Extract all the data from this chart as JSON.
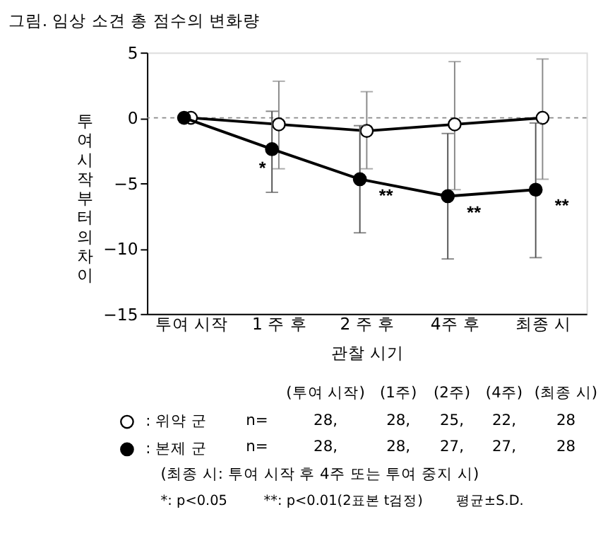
{
  "chart_data": {
    "type": "line",
    "title": "그림. 임상 소견 총 점수의 변화량",
    "xlabel": "관찰 시기",
    "ylabel": "투여시작부터의 차이",
    "categories": [
      "투여 시작",
      "1 주 후",
      "2 주 후",
      "4주 후",
      "최종 시"
    ],
    "series": [
      {
        "name": ": 위약 군",
        "color": "#ffffff",
        "values": [
          0,
          -0.5,
          -1.0,
          -0.5,
          0
        ],
        "errors": [
          null,
          [
            -3.9,
            2.8
          ],
          [
            -3.9,
            2.0
          ],
          [
            -5.5,
            4.3
          ],
          [
            -4.7,
            4.5
          ]
        ]
      },
      {
        "name": ": 본제 군",
        "color": "#000000",
        "values": [
          0,
          -2.4,
          -4.7,
          -6.0,
          -5.5
        ],
        "errors": [
          null,
          [
            -5.7,
            0.5
          ],
          [
            -8.8,
            -0.6
          ],
          [
            -10.8,
            -1.2
          ],
          [
            -10.7,
            -0.4
          ]
        ]
      }
    ],
    "ylim": [
      -15,
      5
    ],
    "yticks": [
      -15,
      -10,
      -5,
      0,
      5
    ],
    "grid": false,
    "marker": "circle",
    "legend": "bottom",
    "ref_lines": [
      {
        "axis": "y",
        "value": 0,
        "line_style": "dashed",
        "color": "#888888"
      }
    ],
    "annotations": [
      "*",
      "**",
      "**",
      "**",
      "(투여 시작)",
      "(1주)",
      "(2주)",
      "(4주)",
      "(최종 시)",
      "n=",
      "28,",
      "28,",
      "25,",
      "22,",
      "28",
      "n=",
      "28,",
      "28,",
      "27,",
      "27,",
      "28",
      "(최종 시: 투여 시작 후 4주 또는 투여 중지 시)",
      "*: p<0.05",
      "**: p<0.01(2표본 t검정)",
      "평균±S.D."
    ]
  }
}
